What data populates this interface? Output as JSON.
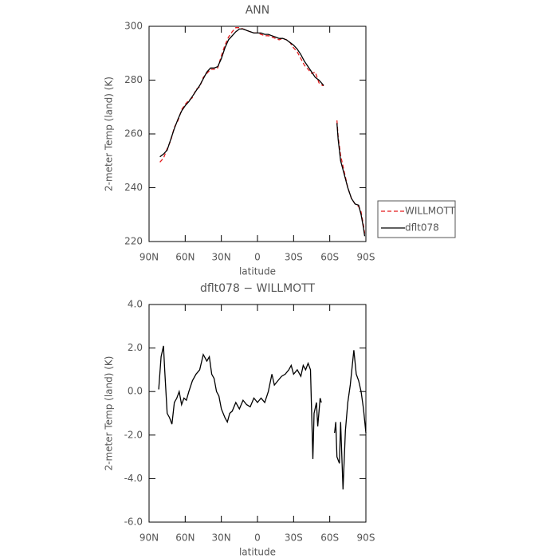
{
  "chart_data": [
    {
      "type": "line",
      "title": "ANN",
      "xlabel": "latitude",
      "ylabel": "2-meter Temp (land) (K)",
      "x": [
        81,
        78,
        75,
        72,
        69,
        66,
        63,
        60,
        57,
        54,
        51,
        48,
        45,
        42,
        39,
        36,
        33,
        30,
        27,
        24,
        21,
        18,
        15,
        12,
        9,
        6,
        3,
        0,
        -3,
        -6,
        -9,
        -12,
        -15,
        -18,
        -21,
        -24,
        -27,
        -30,
        -33,
        -36,
        -39,
        -42,
        -45,
        -48,
        -51,
        -54,
        -55,
        -60,
        -66,
        -67,
        -69,
        -72,
        -75,
        -78,
        -81,
        -84,
        -86,
        -88,
        -89
      ],
      "series": [
        {
          "name": "WILLMOTT",
          "color": "#e41a1c",
          "linestyle": "dashed",
          "values": [
            249.5,
            251,
            254.5,
            257.5,
            262.5,
            265,
            269,
            271,
            272.5,
            273.5,
            276.5,
            277.5,
            281,
            282.5,
            284,
            284,
            284.5,
            289,
            293,
            296,
            298,
            299.5,
            299.5,
            299,
            298.5,
            298,
            297.5,
            297.5,
            297,
            296.5,
            296.5,
            296,
            295.5,
            295,
            295.5,
            295,
            294,
            292,
            290.5,
            288,
            285.5,
            284,
            282.5,
            283,
            279,
            278,
            278,
            null,
            265,
            259,
            252,
            246,
            240,
            236,
            234,
            233,
            231,
            226,
            223
          ]
        },
        {
          "name": "dflt078",
          "color": "#000000",
          "linestyle": "solid",
          "values": [
            251.5,
            252.5,
            254,
            258,
            262,
            265.5,
            268.5,
            270.5,
            272,
            274,
            276,
            278,
            280.5,
            283,
            284.5,
            284.5,
            285,
            288,
            292,
            295,
            296.5,
            298,
            299,
            299,
            298.5,
            298,
            297.5,
            297.5,
            297.5,
            297,
            297,
            296.5,
            296,
            295.5,
            295.5,
            295,
            294,
            293,
            291.5,
            289.5,
            287,
            285,
            283,
            281,
            280,
            278.5,
            278,
            null,
            264,
            258,
            250,
            245,
            240,
            236,
            234,
            233.5,
            230,
            225,
            222
          ]
        }
      ],
      "xlim": [
        90,
        -90
      ],
      "xticks": [
        {
          "value": 90,
          "label": "90N"
        },
        {
          "value": 60,
          "label": "60N"
        },
        {
          "value": 30,
          "label": "30N"
        },
        0,
        {
          "value": -30,
          "label": "30S"
        },
        {
          "value": -60,
          "label": "60S"
        },
        {
          "value": -90,
          "label": "90S"
        }
      ],
      "ylim": [
        220,
        300
      ],
      "yticks": [
        220,
        240,
        260,
        280,
        300
      ],
      "legend": "right"
    },
    {
      "type": "line",
      "title": "dflt078 − WILLMOTT",
      "xlabel": "latitude",
      "ylabel": "2-meter Temp (land) (K)",
      "x": [
        82,
        80,
        78,
        77,
        75,
        73,
        71,
        69,
        67,
        65,
        63,
        61,
        59,
        57,
        54,
        51,
        48,
        45,
        42,
        40,
        38,
        36,
        34,
        32,
        30,
        27,
        25,
        23,
        21,
        18,
        15,
        12,
        9,
        6,
        3,
        0,
        -3,
        -6,
        -9,
        -12,
        -14,
        -17,
        -20,
        -23,
        -26,
        -28,
        -30,
        -33,
        -36,
        -38,
        -40,
        -42,
        -44,
        -46,
        -47,
        -49,
        -50,
        -52,
        -53,
        -58,
        -64,
        -65,
        -66,
        -68,
        -69,
        -71,
        -73,
        -75,
        -77,
        -80,
        -82,
        -84,
        -86,
        -88,
        -90
      ],
      "series": [
        {
          "name": "dflt078 − WILLMOTT",
          "color": "#000000",
          "linestyle": "solid",
          "values": [
            0.1,
            1.6,
            2.1,
            1.0,
            -1.0,
            -1.2,
            -1.5,
            -0.5,
            -0.3,
            0.0,
            -0.6,
            -0.3,
            -0.4,
            0.0,
            0.5,
            0.8,
            1.0,
            1.7,
            1.4,
            1.6,
            0.8,
            0.6,
            0.0,
            -0.2,
            -0.8,
            -1.2,
            -1.4,
            -1.0,
            -0.9,
            -0.5,
            -0.8,
            -0.4,
            -0.6,
            -0.7,
            -0.3,
            -0.5,
            -0.3,
            -0.5,
            0.0,
            0.8,
            0.3,
            0.5,
            0.7,
            0.8,
            1.0,
            1.2,
            0.8,
            1.0,
            0.7,
            1.2,
            1.0,
            1.3,
            1.0,
            -3.1,
            -1.0,
            -0.5,
            -1.6,
            -0.3,
            -0.5,
            null,
            -1.9,
            -1.4,
            -3.0,
            -3.3,
            -1.4,
            -4.5,
            -1.8,
            -0.5,
            0.3,
            1.9,
            0.8,
            0.5,
            0.0,
            -0.8,
            -1.9
          ]
        }
      ],
      "xlim": [
        90,
        -90
      ],
      "xticks": [
        {
          "value": 90,
          "label": "90N"
        },
        {
          "value": 60,
          "label": "60N"
        },
        {
          "value": 30,
          "label": "30N"
        },
        0,
        {
          "value": -30,
          "label": "30S"
        },
        {
          "value": -60,
          "label": "60S"
        },
        {
          "value": -90,
          "label": "90S"
        }
      ],
      "ylim": [
        -6,
        4
      ],
      "yticks": [
        {
          "value": -6,
          "label": "-6.0"
        },
        {
          "value": -4,
          "label": "-4.0"
        },
        {
          "value": -2,
          "label": "-2.0"
        },
        {
          "value": 0,
          "label": "0.0"
        },
        {
          "value": 2,
          "label": "2.0"
        },
        {
          "value": 4,
          "label": "4.0"
        }
      ]
    }
  ]
}
